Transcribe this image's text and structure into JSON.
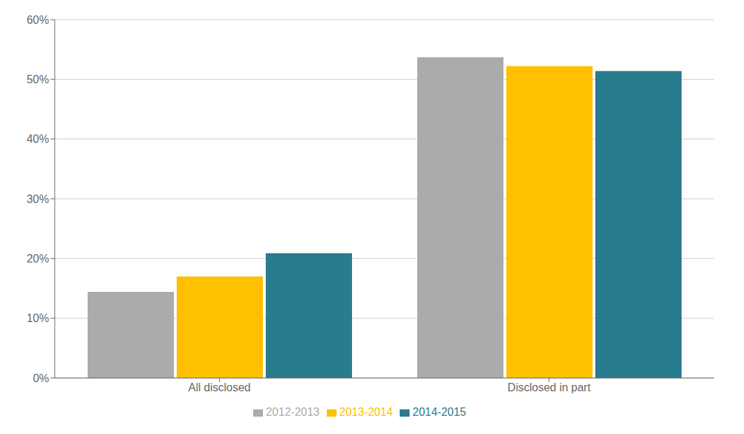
{
  "chart_data": {
    "type": "bar",
    "categories": [
      "All disclosed",
      "Disclosed in part"
    ],
    "series": [
      {
        "name": "2012-2013",
        "color": "#ABABAB",
        "values": [
          0.144,
          0.537
        ]
      },
      {
        "name": "2013-2014",
        "color": "#FFC000",
        "values": [
          0.17,
          0.522
        ]
      },
      {
        "name": "2014-2015",
        "color": "#297B8E",
        "values": [
          0.209,
          0.514
        ]
      }
    ],
    "ylim": [
      0,
      0.6
    ],
    "yticks": [
      {
        "value": 0.0,
        "label": "0%"
      },
      {
        "value": 0.1,
        "label": "10%"
      },
      {
        "value": 0.2,
        "label": "20%"
      },
      {
        "value": 0.3,
        "label": "30%"
      },
      {
        "value": 0.4,
        "label": "40%"
      },
      {
        "value": 0.5,
        "label": "50%"
      },
      {
        "value": 0.6,
        "label": "60%"
      }
    ],
    "grid": true,
    "legend": "bottom"
  }
}
